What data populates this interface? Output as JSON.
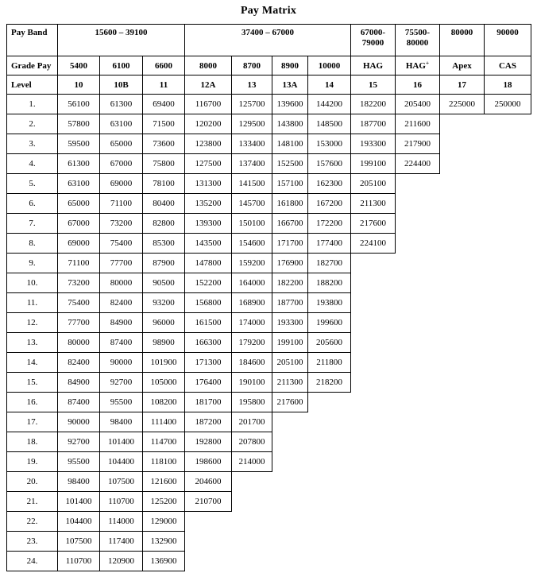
{
  "page": {
    "title": "Pay Matrix"
  },
  "table": {
    "corner_labels": {
      "pay_band": "Pay Band",
      "grade_pay": "Grade Pay",
      "level": "Level"
    },
    "pay_bands": [
      {
        "label": "15600 – 39100"
      },
      {
        "label": "37400 – 67000"
      },
      {
        "label": "67000-79000"
      },
      {
        "label": "75500-80000"
      },
      {
        "label": "80000"
      },
      {
        "label": "90000"
      }
    ],
    "grade_pays": [
      "5400",
      "6100",
      "6600",
      "8000",
      "8700",
      "8900",
      "10000",
      "HAG",
      "HAG",
      "Apex",
      "CAS"
    ],
    "hag_plus_superscript": "+",
    "levels": [
      "10",
      "10B",
      "11",
      "12A",
      "13",
      "13A",
      "14",
      "15",
      "16",
      "17",
      "18"
    ],
    "rows": [
      {
        "index": "1.",
        "values": [
          "56100",
          "61300",
          "69400",
          "116700",
          "125700",
          "139600",
          "144200",
          "182200",
          "205400",
          "225000",
          "250000"
        ]
      },
      {
        "index": "2.",
        "values": [
          "57800",
          "63100",
          "71500",
          "120200",
          "129500",
          "143800",
          "148500",
          "187700",
          "211600"
        ]
      },
      {
        "index": "3.",
        "values": [
          "59500",
          "65000",
          "73600",
          "123800",
          "133400",
          "148100",
          "153000",
          "193300",
          "217900"
        ]
      },
      {
        "index": "4.",
        "values": [
          "61300",
          "67000",
          "75800",
          "127500",
          "137400",
          "152500",
          "157600",
          "199100",
          "224400"
        ]
      },
      {
        "index": "5.",
        "values": [
          "63100",
          "69000",
          "78100",
          "131300",
          "141500",
          "157100",
          "162300",
          "205100"
        ]
      },
      {
        "index": "6.",
        "values": [
          "65000",
          "71100",
          "80400",
          "135200",
          "145700",
          "161800",
          "167200",
          "211300"
        ]
      },
      {
        "index": "7.",
        "values": [
          "67000",
          "73200",
          "82800",
          "139300",
          "150100",
          "166700",
          "172200",
          "217600"
        ]
      },
      {
        "index": "8.",
        "values": [
          "69000",
          "75400",
          "85300",
          "143500",
          "154600",
          "171700",
          "177400",
          "224100"
        ]
      },
      {
        "index": "9.",
        "values": [
          "71100",
          "77700",
          "87900",
          "147800",
          "159200",
          "176900",
          "182700"
        ]
      },
      {
        "index": "10.",
        "values": [
          "73200",
          "80000",
          "90500",
          "152200",
          "164000",
          "182200",
          "188200"
        ]
      },
      {
        "index": "11.",
        "values": [
          "75400",
          "82400",
          "93200",
          "156800",
          "168900",
          "187700",
          "193800"
        ]
      },
      {
        "index": "12.",
        "values": [
          "77700",
          "84900",
          "96000",
          "161500",
          "174000",
          "193300",
          "199600"
        ]
      },
      {
        "index": "13.",
        "values": [
          "80000",
          "87400",
          "98900",
          "166300",
          "179200",
          "199100",
          "205600"
        ]
      },
      {
        "index": "14.",
        "values": [
          "82400",
          "90000",
          "101900",
          "171300",
          "184600",
          "205100",
          "211800"
        ]
      },
      {
        "index": "15.",
        "values": [
          "84900",
          "92700",
          "105000",
          "176400",
          "190100",
          "211300",
          "218200"
        ]
      },
      {
        "index": "16.",
        "values": [
          "87400",
          "95500",
          "108200",
          "181700",
          "195800",
          "217600"
        ]
      },
      {
        "index": "17.",
        "values": [
          "90000",
          "98400",
          "111400",
          "187200",
          "201700"
        ]
      },
      {
        "index": "18.",
        "values": [
          "92700",
          "101400",
          "114700",
          "192800",
          "207800"
        ]
      },
      {
        "index": "19.",
        "values": [
          "95500",
          "104400",
          "118100",
          "198600",
          "214000"
        ]
      },
      {
        "index": "20.",
        "values": [
          "98400",
          "107500",
          "121600",
          "204600"
        ]
      },
      {
        "index": "21.",
        "values": [
          "101400",
          "110700",
          "125200",
          "210700"
        ]
      },
      {
        "index": "22.",
        "values": [
          "104400",
          "114000",
          "129000"
        ]
      },
      {
        "index": "23.",
        "values": [
          "107500",
          "117400",
          "132900"
        ]
      },
      {
        "index": "24.",
        "values": [
          "110700",
          "120900",
          "136900"
        ]
      }
    ]
  }
}
